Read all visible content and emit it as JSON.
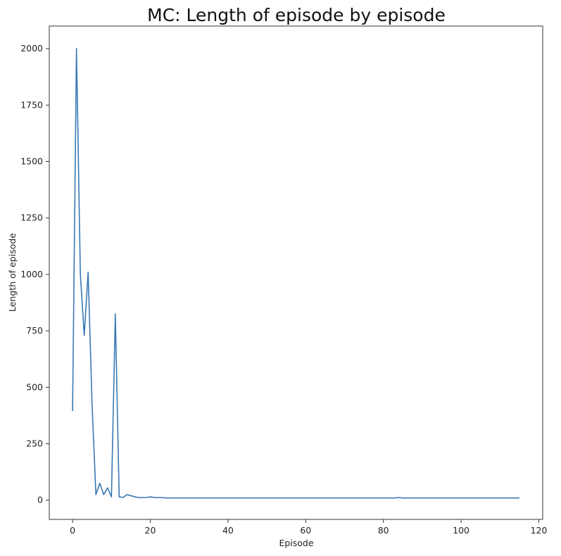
{
  "chart_data": {
    "type": "line",
    "title": "MC: Length of episode by episode",
    "xlabel": "Episode",
    "ylabel": "Length of episode",
    "xlim": [
      -6,
      121
    ],
    "ylim": [
      -85,
      2100
    ],
    "xticks": [
      0,
      20,
      40,
      60,
      80,
      100,
      120
    ],
    "yticks": [
      0,
      250,
      500,
      750,
      1000,
      1250,
      1500,
      1750,
      2000
    ],
    "grid": false,
    "legend": "none",
    "series": [
      {
        "color": "#3a78b4",
        "x": [
          0,
          1,
          2,
          3,
          4,
          5,
          6,
          7,
          8,
          9,
          10,
          11,
          12,
          13,
          14,
          15,
          16,
          17,
          18,
          19,
          20,
          21,
          22,
          23,
          24,
          25,
          30,
          40,
          50,
          60,
          70,
          80,
          83,
          84,
          85,
          90,
          100,
          110,
          115
        ],
        "y": [
          395,
          2000,
          1000,
          730,
          1010,
          430,
          25,
          75,
          25,
          55,
          15,
          825,
          15,
          12,
          25,
          20,
          15,
          12,
          12,
          12,
          15,
          12,
          12,
          12,
          10,
          10,
          10,
          10,
          10,
          10,
          10,
          10,
          10,
          12,
          10,
          10,
          10,
          10,
          10
        ]
      }
    ]
  }
}
